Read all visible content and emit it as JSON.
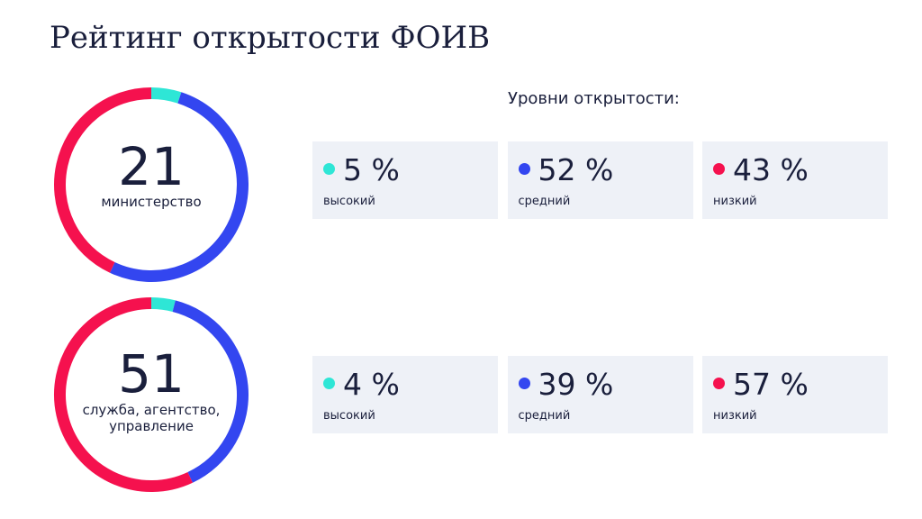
{
  "title": "Рейтинг открытости ФОИВ",
  "subtitle": "Уровни открытости:",
  "chart_data": [
    {
      "type": "pie",
      "donut": true,
      "center_value": 21,
      "center_label": "министерство",
      "categories": [
        "высокий",
        "средний",
        "низкий"
      ],
      "values": [
        5,
        52,
        43
      ],
      "value_labels": [
        "5 %",
        "52 %",
        "43 %"
      ],
      "colors": [
        "#2ee6d6",
        "#3346f0",
        "#f5114e"
      ]
    },
    {
      "type": "pie",
      "donut": true,
      "center_value": 51,
      "center_label": "служба, агентство, управление",
      "categories": [
        "высокий",
        "средний",
        "низкий"
      ],
      "values": [
        4,
        39,
        57
      ],
      "value_labels": [
        "4 %",
        "39 %",
        "57 %"
      ],
      "colors": [
        "#2ee6d6",
        "#3346f0",
        "#f5114e"
      ]
    }
  ]
}
